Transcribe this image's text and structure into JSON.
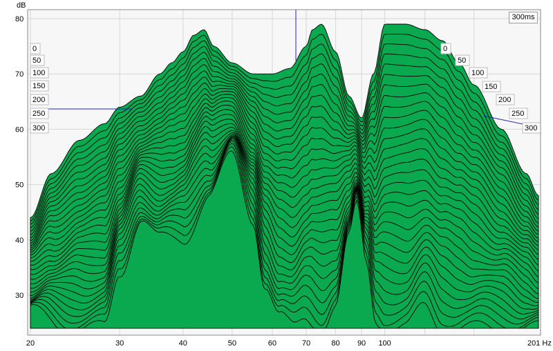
{
  "chart_data": {
    "type": "area",
    "title": "",
    "ylabel": "dB",
    "xlabel": "Hz",
    "x_scale": "log",
    "xlim": [
      20,
      201
    ],
    "ylim": [
      24,
      82
    ],
    "x_ticks": [
      "20",
      "30",
      "40",
      "50",
      "60",
      "70",
      "80",
      "90",
      "100",
      "201 Hz"
    ],
    "y_ticks": [
      "80",
      "70",
      "60",
      "50",
      "40",
      "30"
    ],
    "time_labels_ms": [
      "0",
      "50",
      "100",
      "150",
      "200",
      "250",
      "300"
    ],
    "time_readout": "300ms",
    "slice_count": 31,
    "fill_color": "#0aa84f",
    "line_color": "#000000",
    "cursor_color": "#2222bb",
    "grid": true,
    "first_slice": {
      "name": "0",
      "x": [
        20,
        22,
        25,
        28,
        30,
        33,
        36,
        38,
        40,
        42,
        44,
        46,
        50,
        55,
        60,
        65,
        70,
        72,
        75,
        80,
        85,
        90,
        95,
        100,
        110,
        120,
        130,
        140,
        150,
        170,
        190,
        201
      ],
      "y": [
        44,
        52,
        58,
        61,
        64,
        66,
        70,
        72,
        74,
        77,
        78,
        75,
        72,
        70,
        70,
        71,
        75,
        78,
        79,
        74,
        66,
        62,
        70,
        79,
        79,
        78,
        76,
        72,
        68,
        60,
        52,
        48
      ]
    },
    "last_slice": {
      "name": "300",
      "x": [
        20,
        24,
        26,
        28,
        30,
        33,
        36,
        40,
        45,
        50,
        55,
        58,
        62,
        66,
        70,
        75,
        80,
        85,
        88,
        92,
        96,
        100,
        110,
        120,
        130,
        140,
        150,
        170,
        190,
        201
      ],
      "y": [
        27,
        24,
        24,
        24,
        34,
        44,
        40,
        40,
        48,
        55,
        44,
        32,
        26,
        24,
        26,
        24,
        28,
        40,
        46,
        36,
        26,
        24,
        24,
        28,
        24,
        24,
        24,
        24,
        24,
        24
      ]
    }
  }
}
